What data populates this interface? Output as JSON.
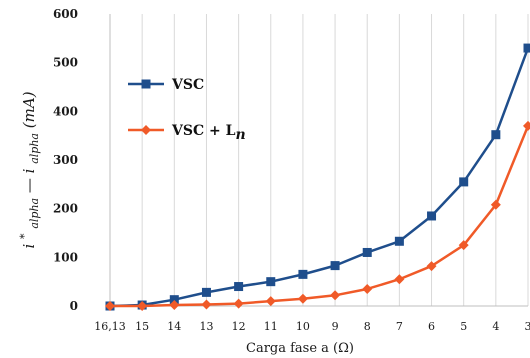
{
  "chart_data": {
    "type": "line",
    "categories": [
      "16,13",
      "15",
      "14",
      "13",
      "12",
      "11",
      "10",
      "9",
      "8",
      "7",
      "6",
      "5",
      "4",
      "3"
    ],
    "series": [
      {
        "name": "VSC",
        "color": "#1f4e8c",
        "marker": "square",
        "values": [
          0,
          2,
          13,
          28,
          40,
          50,
          65,
          83,
          110,
          133,
          185,
          255,
          352,
          530
        ]
      },
      {
        "name": "VSC + L",
        "name_subscript": "n",
        "color": "#f05a28",
        "marker": "diamond",
        "values": [
          0,
          0,
          2,
          3,
          5,
          10,
          15,
          22,
          35,
          55,
          82,
          125,
          208,
          370
        ]
      }
    ],
    "yticks": [
      0,
      100,
      200,
      300,
      400,
      500,
      600
    ],
    "ylim": [
      0,
      600
    ],
    "xlabel": "Carga fase a (Ω)",
    "ylabel": {
      "main1": "i",
      "sup1": "*",
      "sub1": "alpha",
      "dash": " — ",
      "main2": "i",
      "sub2": "alpha",
      "unit": " (mA)"
    },
    "grid": "vertical",
    "legend_position": "upper-left"
  }
}
